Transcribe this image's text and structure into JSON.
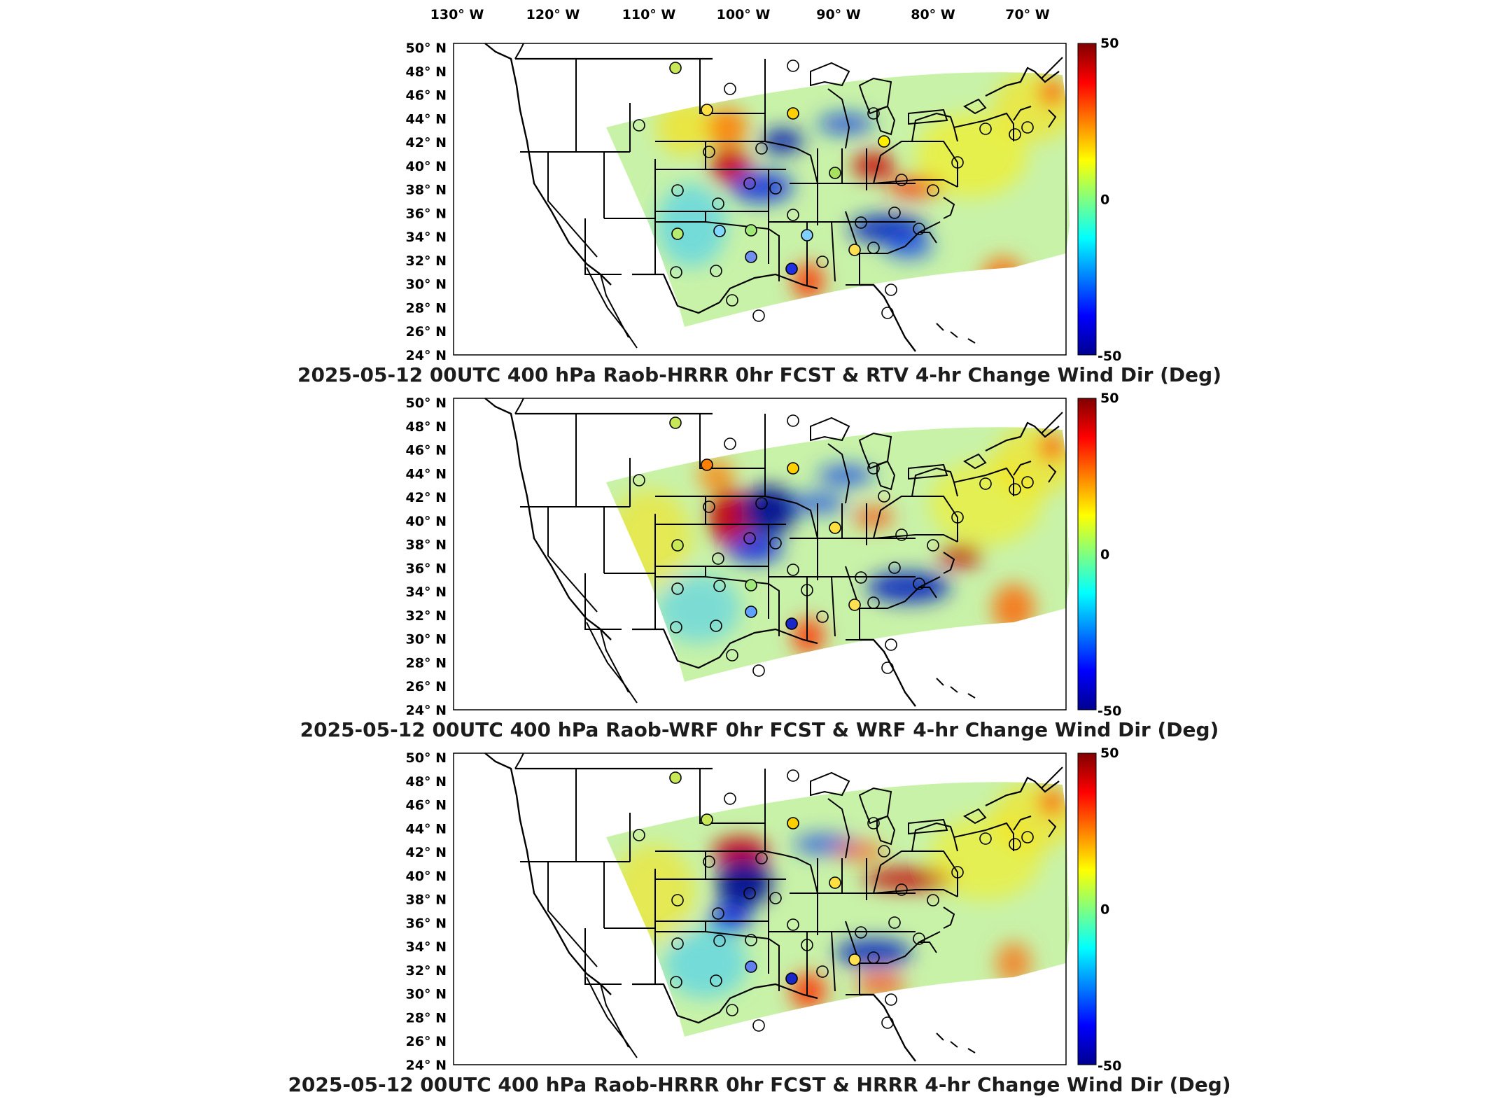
{
  "longitude_labels": [
    "130° W",
    "120° W",
    "110° W",
    "100° W",
    "90° W",
    "80° W",
    "70° W"
  ],
  "latitude_labels": [
    "50° N",
    "48° N",
    "46° N",
    "44° N",
    "42° N",
    "40° N",
    "38° N",
    "36° N",
    "34° N",
    "32° N",
    "30° N",
    "28° N",
    "26° N",
    "24° N"
  ],
  "colorbar": {
    "max_label": "50",
    "mid_label": "0",
    "min_label": "-50",
    "colors": [
      "#00008f",
      "#0000ff",
      "#0080ff",
      "#00ffff",
      "#80ff80",
      "#ffff00",
      "#ff8000",
      "#ff0000",
      "#800000"
    ]
  },
  "panels": [
    {
      "title": "2025-05-12 00UTC 400 hPa Raob-HRRR 0hr FCST & RTV 4-hr Change Wind Dir (Deg)"
    },
    {
      "title": "2025-05-12 00UTC 400 hPa Raob-WRF 0hr FCST & WRF 4-hr Change Wind Dir (Deg)"
    },
    {
      "title": "2025-05-12 00UTC 400 hPa Raob-HRRR 0hr FCST & HRRR 4-hr Change Wind Dir (Deg)"
    }
  ],
  "map_extent": {
    "lon": [
      -130,
      -66
    ],
    "lat": [
      24,
      50
    ]
  },
  "colors": {
    "field_base": "#c8f2a8",
    "blue_anomaly": "#1a3fd6",
    "red_anomaly": "#d41a0a",
    "outline": "#000000"
  }
}
